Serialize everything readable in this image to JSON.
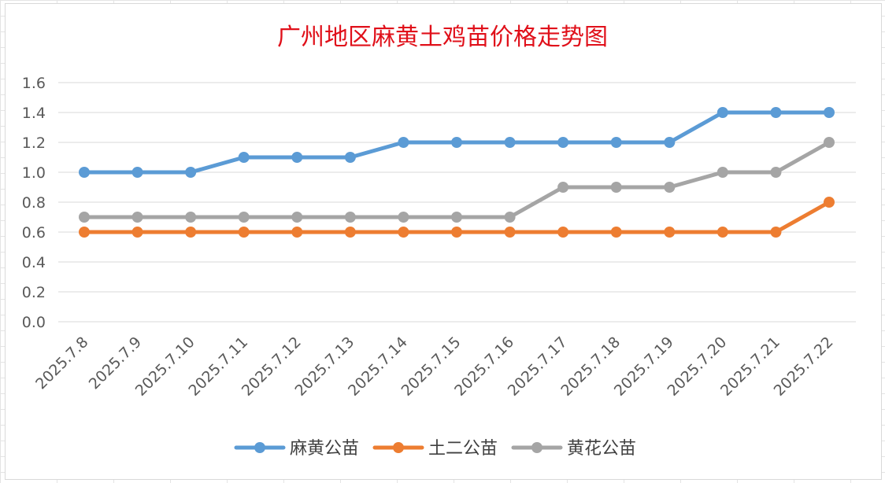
{
  "chart_data": {
    "type": "line",
    "title": "广州地区麻黄土鸡苗价格走势图",
    "categories": [
      "2025.7.8",
      "2025.7.9",
      "2025.7.10",
      "2025.7.11",
      "2025.7.12",
      "2025.7.13",
      "2025.7.14",
      "2025.7.15",
      "2025.7.16",
      "2025.7.17",
      "2025.7.18",
      "2025.7.19",
      "2025.7.20",
      "2025.7.21",
      "2025.7.22"
    ],
    "y_ticks": [
      "0.0",
      "0.2",
      "0.4",
      "0.6",
      "0.8",
      "1.0",
      "1.2",
      "1.4",
      "1.6"
    ],
    "ylim": [
      0,
      1.6
    ],
    "grid": true,
    "legend_position": "bottom",
    "series": [
      {
        "name": "麻黄公苗",
        "color": "#5b9bd5",
        "values": [
          1.0,
          1.0,
          1.0,
          1.1,
          1.1,
          1.1,
          1.2,
          1.2,
          1.2,
          1.2,
          1.2,
          1.2,
          1.4,
          1.4,
          1.4
        ]
      },
      {
        "name": "土二公苗",
        "color": "#ed7d31",
        "values": [
          0.6,
          0.6,
          0.6,
          0.6,
          0.6,
          0.6,
          0.6,
          0.6,
          0.6,
          0.6,
          0.6,
          0.6,
          0.6,
          0.6,
          0.8
        ]
      },
      {
        "name": "黄花公苗",
        "color": "#a5a5a5",
        "values": [
          0.7,
          0.7,
          0.7,
          0.7,
          0.7,
          0.7,
          0.7,
          0.7,
          0.7,
          0.9,
          0.9,
          0.9,
          1.0,
          1.0,
          1.2
        ]
      }
    ]
  }
}
